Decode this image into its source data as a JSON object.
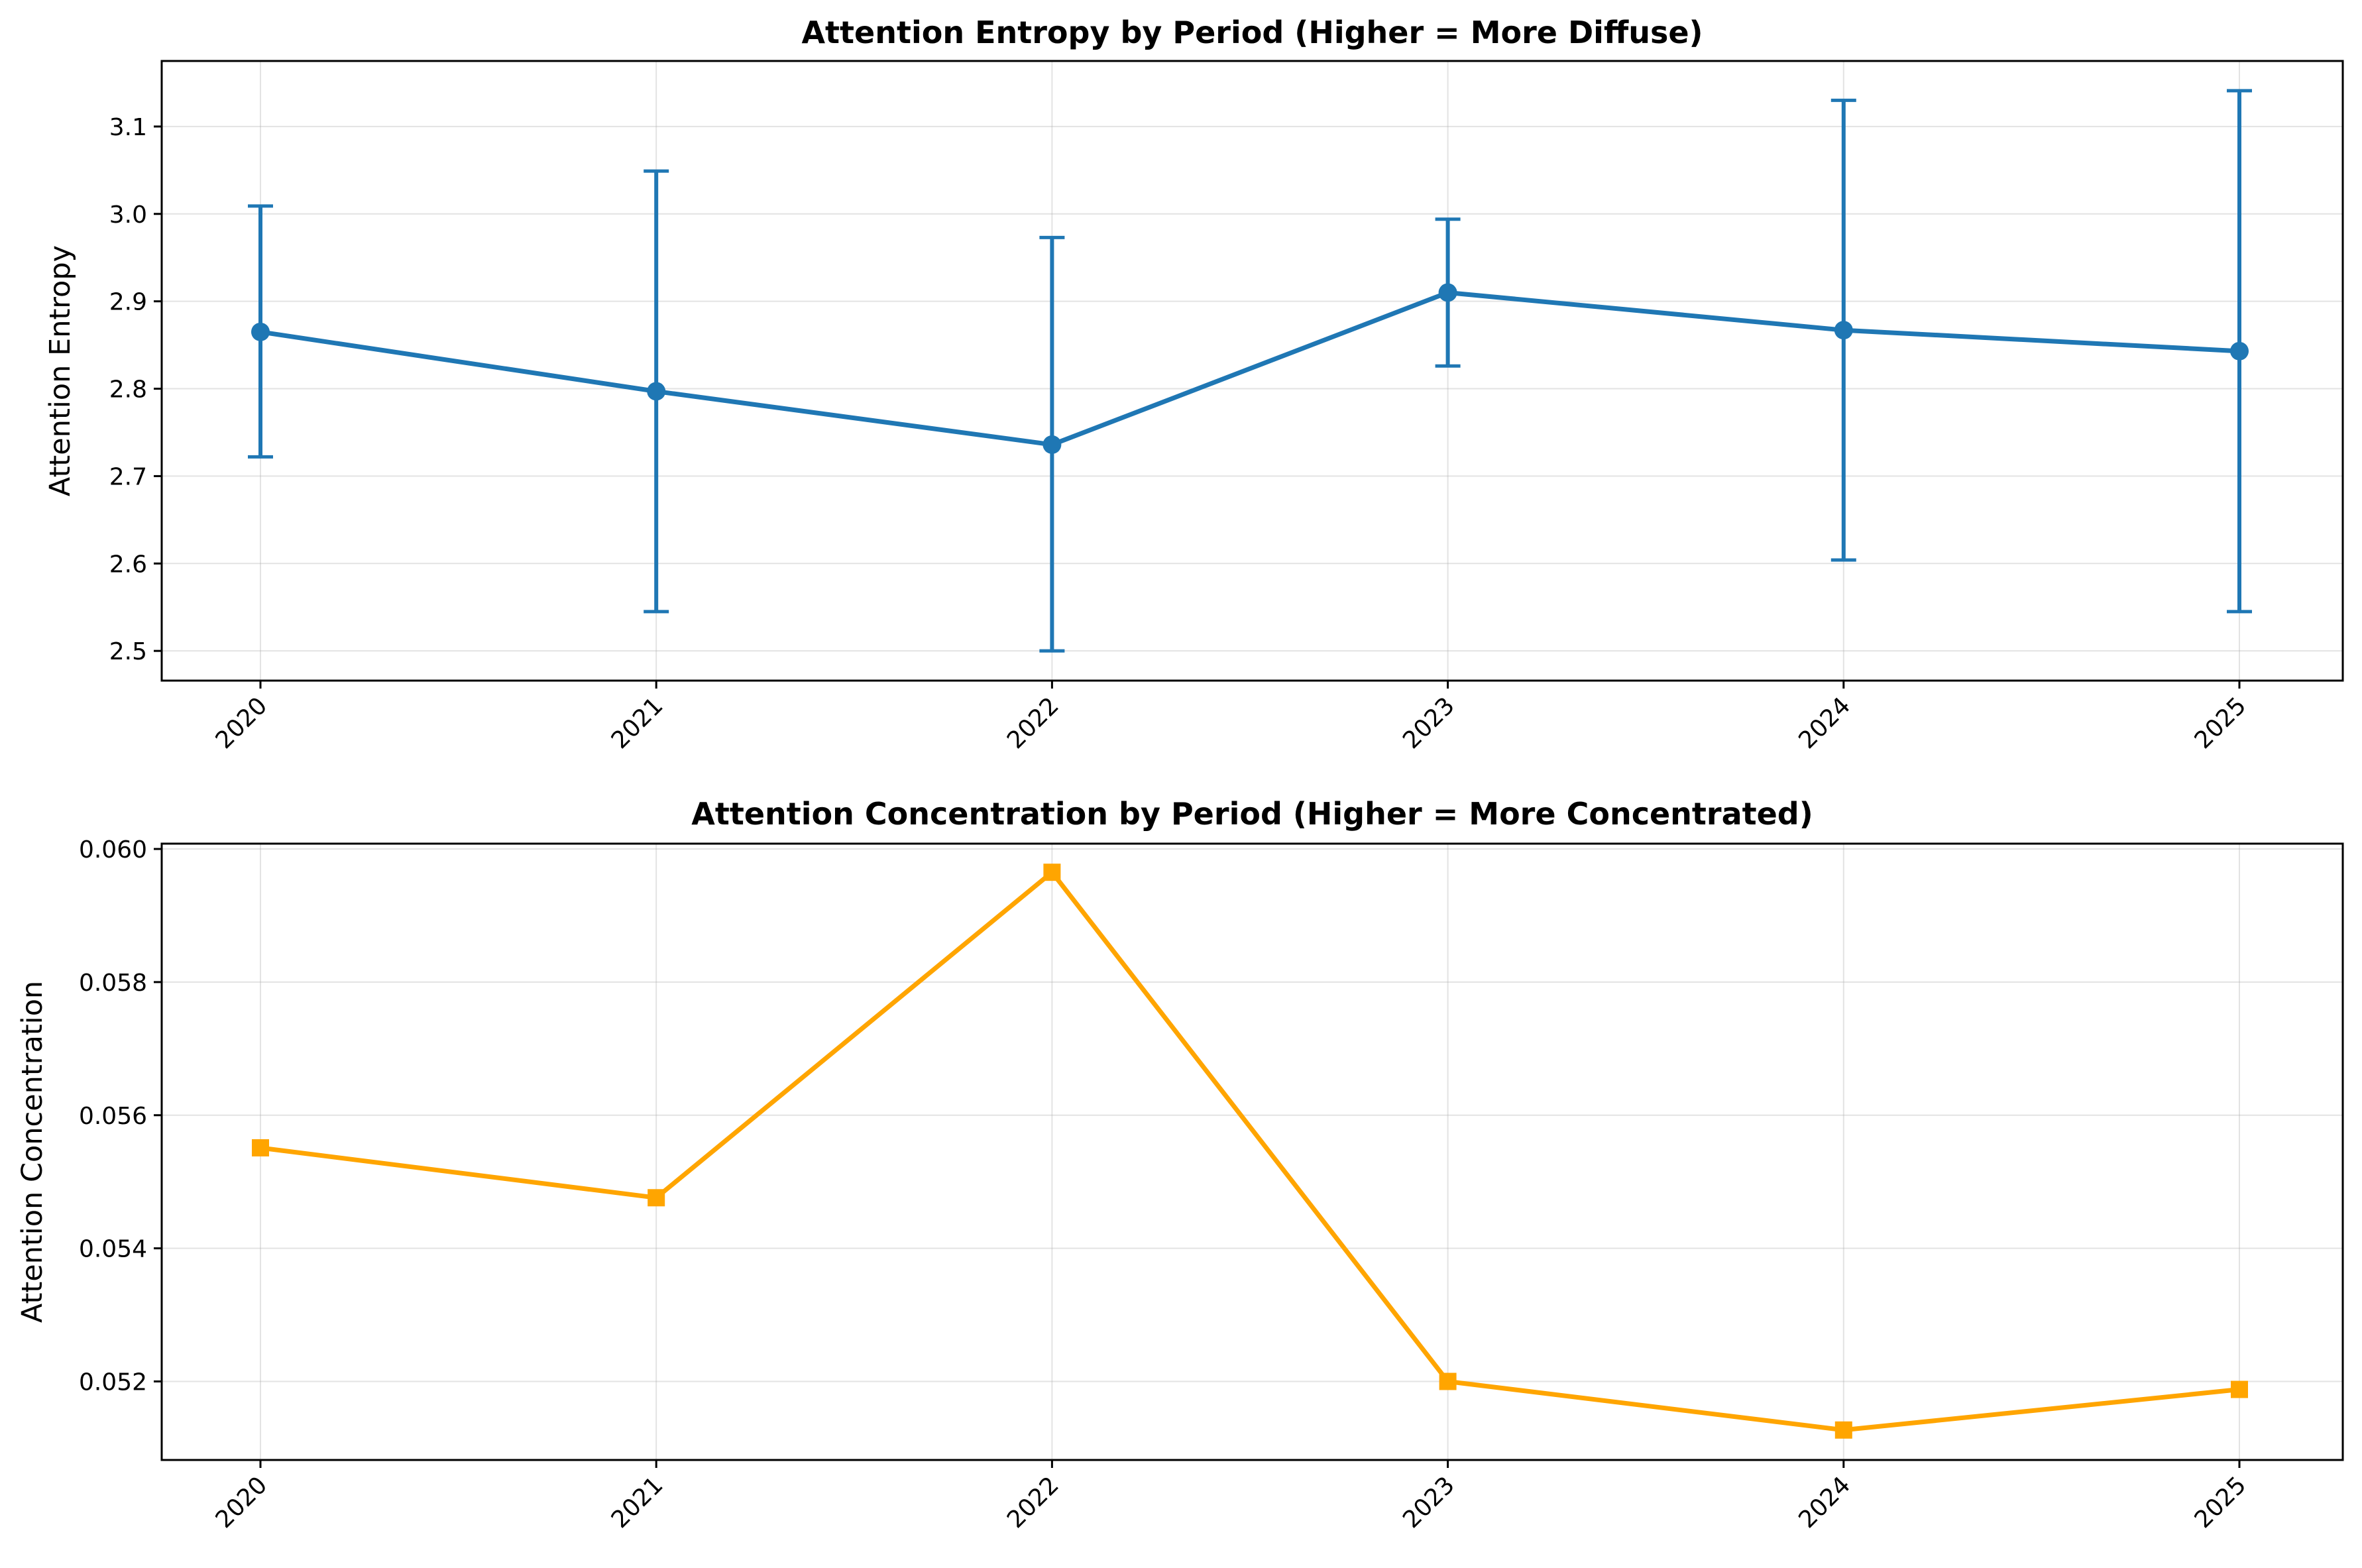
{
  "chart_data": [
    {
      "type": "line",
      "title": "Attention Entropy by Period (Higher = More Diffuse)",
      "xlabel": "",
      "ylabel": "Attention Entropy",
      "categories": [
        "2020",
        "2021",
        "2022",
        "2023",
        "2024",
        "2025"
      ],
      "series": [
        {
          "values": [
            2.865,
            2.797,
            2.736,
            2.91,
            2.867,
            2.843
          ],
          "error_low": [
            2.722,
            2.545,
            2.5,
            2.826,
            2.604,
            2.545
          ],
          "error_high": [
            3.009,
            3.049,
            2.973,
            2.994,
            3.13,
            3.141
          ],
          "color": "#1f77b4",
          "marker": "circle"
        }
      ],
      "ylim": [
        2.466,
        3.175
      ],
      "yticks": [
        2.5,
        2.6,
        2.7,
        2.8,
        2.9,
        3.0,
        3.1
      ],
      "ytick_labels": [
        "2.5",
        "2.6",
        "2.7",
        "2.8",
        "2.9",
        "3.0",
        "3.1"
      ],
      "grid": true,
      "legend": "none"
    },
    {
      "type": "line",
      "title": "Attention Concentration by Period (Higher = More Concentrated)",
      "xlabel": "",
      "ylabel": "Attention Concentration",
      "categories": [
        "2020",
        "2021",
        "2022",
        "2023",
        "2024",
        "2025"
      ],
      "series": [
        {
          "values": [
            0.05551,
            0.05476,
            0.05965,
            0.052,
            0.05127,
            0.05188
          ],
          "color": "#ffa500",
          "marker": "square"
        }
      ],
      "ylim": [
        0.05082,
        0.06008
      ],
      "yticks": [
        0.052,
        0.054,
        0.056,
        0.058,
        0.06
      ],
      "ytick_labels": [
        "0.052",
        "0.054",
        "0.056",
        "0.058",
        "0.060"
      ],
      "grid": true,
      "legend": "none"
    }
  ]
}
